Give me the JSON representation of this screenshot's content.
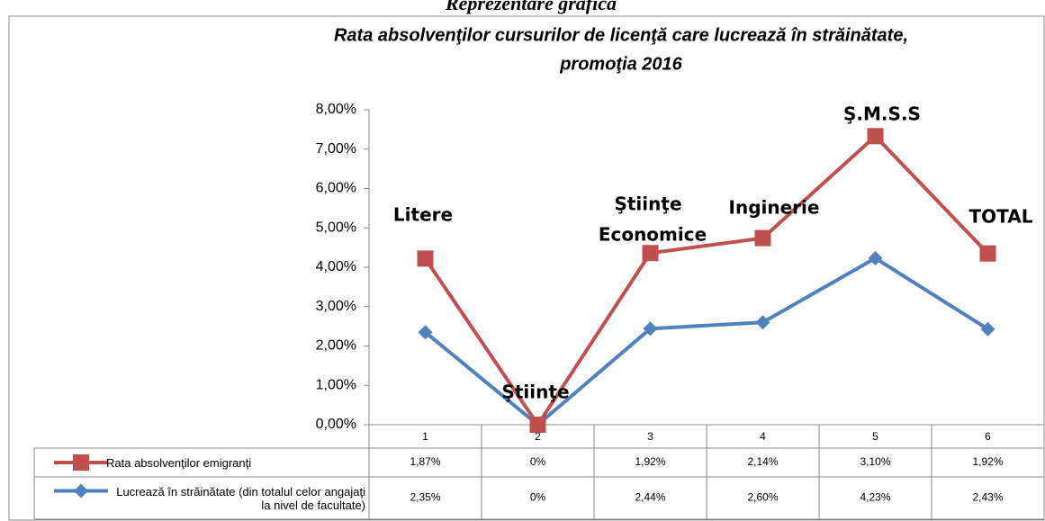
{
  "heading": "Reprezentare grafică",
  "chart_data": {
    "type": "line",
    "stacked": true,
    "title": [
      "Rata absolvenţilor cursurilor de licenţă care lucrează în străinătate,",
      "promoţia 2016"
    ],
    "categories": [
      "1",
      "2",
      "3",
      "4",
      "5",
      "6"
    ],
    "series": [
      {
        "name": "Lucrează  în străinătate (din totalul celor angajaţi la nivel de facultate)",
        "color": "#4f81bd",
        "marker": "diamond",
        "values": [
          2.35,
          0,
          2.44,
          2.6,
          4.23,
          2.43
        ],
        "value_labels": [
          "2,35%",
          "0%",
          "2,44%",
          "2,60%",
          "4,23%",
          "2,43%"
        ]
      },
      {
        "name": "Rata  absolvenţilor emigranţi",
        "color": "#c0504d",
        "marker": "square",
        "values": [
          1.87,
          0,
          1.92,
          2.14,
          3.1,
          1.92
        ],
        "value_labels": [
          "1,87%",
          "0%",
          "1,92%",
          "2,14%",
          "3,10%",
          "1,92%"
        ]
      }
    ],
    "annotations": [
      [
        "Litere"
      ],
      [
        "Ştiinţe"
      ],
      [
        "Ştiinţe",
        "Economice"
      ],
      [
        "Inginerie"
      ],
      [
        "Ş.M.S.S"
      ],
      [
        "TOTAL"
      ]
    ],
    "ylim": [
      0,
      8
    ],
    "yticks": [
      {
        "value": 0,
        "label": "0,00%"
      },
      {
        "value": 1,
        "label": "1,00%"
      },
      {
        "value": 2,
        "label": "2,00%"
      },
      {
        "value": 3,
        "label": "3,00%"
      },
      {
        "value": 4,
        "label": "4,00%"
      },
      {
        "value": 5,
        "label": "5,00%"
      },
      {
        "value": 6,
        "label": "6,00%"
      },
      {
        "value": 7,
        "label": "7,00%"
      },
      {
        "value": 8,
        "label": "8,00%"
      }
    ],
    "grid": false
  }
}
